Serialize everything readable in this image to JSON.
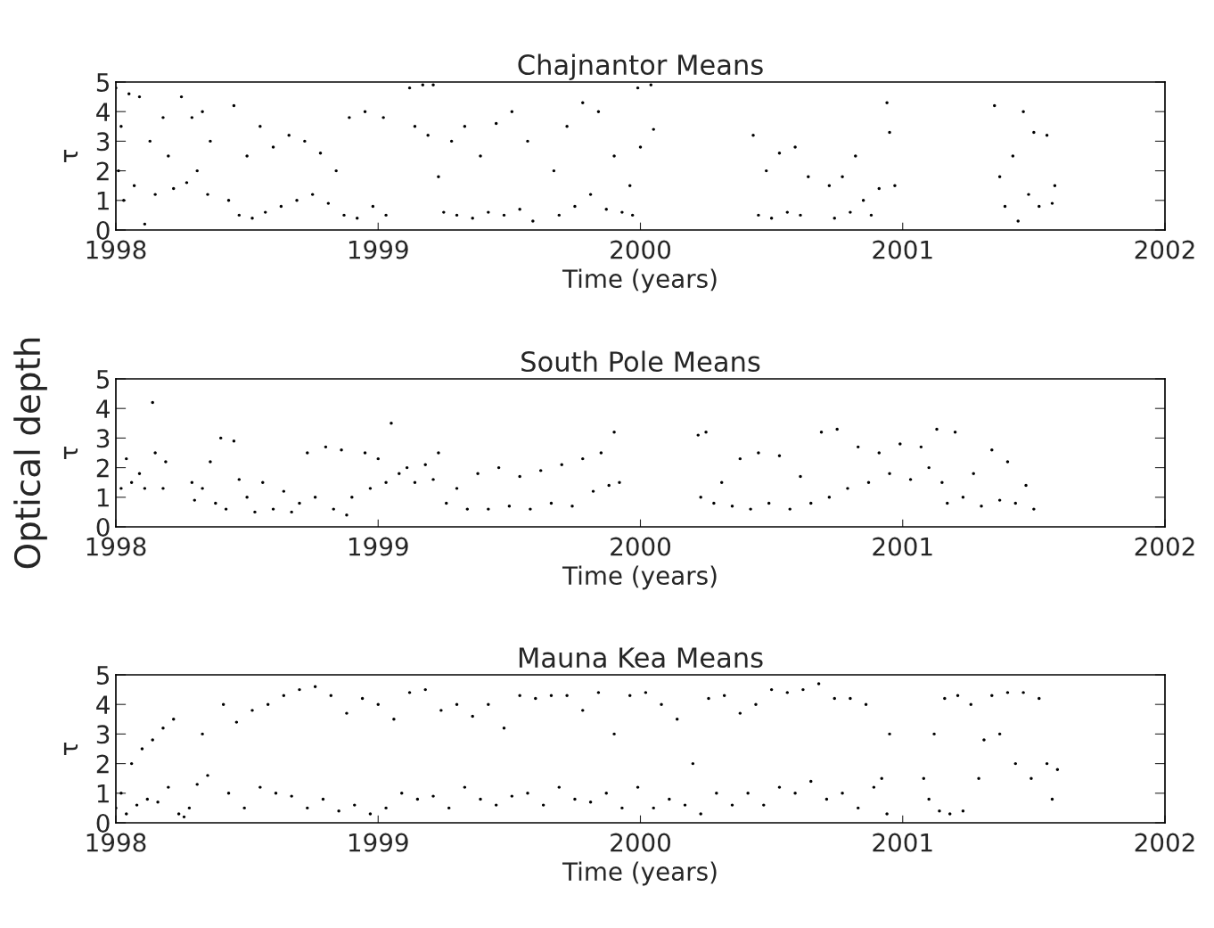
{
  "chart_data": [
    {
      "type": "scatter",
      "title": "Chajnantor Means",
      "xlabel": "Time (years)",
      "ylabel": "τ",
      "marker": "circle",
      "xlim": [
        1998,
        2002
      ],
      "xticks": [
        1998,
        1999,
        2000,
        2001,
        2002
      ],
      "ylim": [
        0,
        5
      ],
      "yticks": [
        0,
        1,
        2,
        3,
        4,
        5
      ],
      "series": [
        {
          "color": "#000000",
          "x": [
            1998.0,
            1998.01,
            1998.02,
            1998.03,
            1998.05,
            1998.07,
            1998.09,
            1998.11,
            1998.13,
            1998.15,
            1998.18,
            1998.2,
            1998.22,
            1998.25,
            1998.27,
            1998.29,
            1998.31,
            1998.33,
            1998.35,
            1998.36,
            1998.43,
            1998.45,
            1998.47,
            1998.5,
            1998.52,
            1998.55,
            1998.57,
            1998.6,
            1998.63,
            1998.66,
            1998.69,
            1998.72,
            1998.75,
            1998.78,
            1998.81,
            1998.84,
            1998.87,
            1998.89,
            1998.92,
            1998.95,
            1998.98,
            1999.02,
            1999.03,
            1999.12,
            1999.14,
            1999.17,
            1999.19,
            1999.21,
            1999.23,
            1999.25,
            1999.28,
            1999.3,
            1999.33,
            1999.36,
            1999.39,
            1999.42,
            1999.45,
            1999.48,
            1999.51,
            1999.54,
            1999.57,
            1999.59,
            1999.67,
            1999.69,
            1999.72,
            1999.75,
            1999.78,
            1999.81,
            1999.84,
            1999.87,
            1999.9,
            1999.93,
            1999.96,
            1999.97,
            1999.99,
            2000.0,
            2000.04,
            2000.05,
            2000.43,
            2000.45,
            2000.48,
            2000.5,
            2000.53,
            2000.56,
            2000.59,
            2000.61,
            2000.64,
            2000.72,
            2000.74,
            2000.77,
            2000.8,
            2000.82,
            2000.85,
            2000.88,
            2000.91,
            2000.94,
            2000.95,
            2000.97,
            2001.35,
            2001.37,
            2001.39,
            2001.42,
            2001.44,
            2001.46,
            2001.48,
            2001.5,
            2001.52,
            2001.55,
            2001.57,
            2001.58
          ],
          "values": [
            4.8,
            2.0,
            3.5,
            1.0,
            4.6,
            1.5,
            4.5,
            0.2,
            3.0,
            1.2,
            3.8,
            2.5,
            1.4,
            4.5,
            1.6,
            3.8,
            2.0,
            4.0,
            1.2,
            3.0,
            1.0,
            4.2,
            0.5,
            2.5,
            0.4,
            3.5,
            0.6,
            2.8,
            0.8,
            3.2,
            1.0,
            3.0,
            1.2,
            2.6,
            0.9,
            2.0,
            0.5,
            3.8,
            0.4,
            4.0,
            0.8,
            3.8,
            0.5,
            4.8,
            3.5,
            4.9,
            3.2,
            4.9,
            1.8,
            0.6,
            3.0,
            0.5,
            3.5,
            0.4,
            2.5,
            0.6,
            3.6,
            0.5,
            4.0,
            0.7,
            3.0,
            0.3,
            2.0,
            0.5,
            3.5,
            0.8,
            4.3,
            1.2,
            4.0,
            0.7,
            2.5,
            0.6,
            1.5,
            0.5,
            4.8,
            2.8,
            4.9,
            3.4,
            3.2,
            0.5,
            2.0,
            0.4,
            2.6,
            0.6,
            2.8,
            0.5,
            1.8,
            1.5,
            0.4,
            1.8,
            0.6,
            2.5,
            1.0,
            0.5,
            1.4,
            4.3,
            3.3,
            1.5,
            4.2,
            1.8,
            0.8,
            2.5,
            0.3,
            4.0,
            1.2,
            3.3,
            0.8,
            3.2,
            0.9,
            1.5
          ]
        }
      ]
    },
    {
      "type": "scatter",
      "title": "South Pole Means",
      "xlabel": "Time (years)",
      "ylabel": "τ",
      "annotations": [
        "Optical depth"
      ],
      "marker": "circle",
      "xlim": [
        1998,
        2002
      ],
      "xticks": [
        1998,
        1999,
        2000,
        2001,
        2002
      ],
      "ylim": [
        0,
        5
      ],
      "yticks": [
        0,
        1,
        2,
        3,
        4,
        5
      ],
      "series": [
        {
          "color": "#000000",
          "x": [
            1998.02,
            1998.04,
            1998.06,
            1998.09,
            1998.11,
            1998.14,
            1998.15,
            1998.18,
            1998.19,
            1998.29,
            1998.3,
            1998.33,
            1998.36,
            1998.38,
            1998.4,
            1998.42,
            1998.45,
            1998.47,
            1998.5,
            1998.53,
            1998.56,
            1998.6,
            1998.64,
            1998.67,
            1998.7,
            1998.73,
            1998.76,
            1998.8,
            1998.83,
            1998.86,
            1998.88,
            1998.9,
            1998.95,
            1998.97,
            1999.0,
            1999.03,
            1999.05,
            1999.08,
            1999.11,
            1999.14,
            1999.18,
            1999.21,
            1999.23,
            1999.26,
            1999.3,
            1999.34,
            1999.38,
            1999.42,
            1999.46,
            1999.5,
            1999.54,
            1999.58,
            1999.62,
            1999.66,
            1999.7,
            1999.74,
            1999.78,
            1999.82,
            1999.85,
            1999.88,
            1999.9,
            1999.92,
            2000.22,
            2000.23,
            2000.25,
            2000.28,
            2000.31,
            2000.35,
            2000.38,
            2000.42,
            2000.45,
            2000.49,
            2000.53,
            2000.57,
            2000.61,
            2000.65,
            2000.69,
            2000.72,
            2000.75,
            2000.79,
            2000.83,
            2000.87,
            2000.91,
            2000.95,
            2000.99,
            2001.03,
            2001.07,
            2001.1,
            2001.13,
            2001.15,
            2001.17,
            2001.2,
            2001.23,
            2001.27,
            2001.3,
            2001.34,
            2001.37,
            2001.4,
            2001.43,
            2001.47,
            2001.5
          ],
          "values": [
            1.3,
            2.3,
            1.5,
            1.8,
            1.3,
            4.2,
            2.5,
            1.3,
            2.2,
            1.5,
            0.9,
            1.3,
            2.2,
            0.8,
            3.0,
            0.6,
            2.9,
            1.6,
            1.0,
            0.5,
            1.5,
            0.6,
            1.2,
            0.5,
            0.8,
            2.5,
            1.0,
            2.7,
            0.6,
            2.6,
            0.4,
            1.0,
            2.5,
            1.3,
            2.3,
            1.5,
            3.5,
            1.8,
            2.0,
            1.5,
            2.1,
            1.6,
            2.5,
            0.8,
            1.3,
            0.6,
            1.8,
            0.6,
            2.0,
            0.7,
            1.7,
            0.6,
            1.9,
            0.8,
            2.1,
            0.7,
            2.3,
            1.2,
            2.5,
            1.4,
            3.2,
            1.5,
            3.1,
            1.0,
            3.2,
            0.8,
            1.5,
            0.7,
            2.3,
            0.6,
            2.5,
            0.8,
            2.4,
            0.6,
            1.7,
            0.8,
            3.2,
            1.0,
            3.3,
            1.3,
            2.7,
            1.5,
            2.5,
            1.8,
            2.8,
            1.6,
            2.7,
            2.0,
            3.3,
            1.5,
            0.8,
            3.2,
            1.0,
            1.8,
            0.7,
            2.6,
            0.9,
            2.2,
            0.8,
            1.4,
            0.6
          ]
        }
      ]
    },
    {
      "type": "scatter",
      "title": "Mauna Kea Means",
      "xlabel": "Time (years)",
      "ylabel": "τ",
      "marker": "circle",
      "xlim": [
        1998,
        2002
      ],
      "xticks": [
        1998,
        1999,
        2000,
        2001,
        2002
      ],
      "ylim": [
        0,
        5
      ],
      "yticks": [
        0,
        1,
        2,
        3,
        4,
        5
      ],
      "series": [
        {
          "color": "#000000",
          "x": [
            1998.0,
            1998.02,
            1998.04,
            1998.06,
            1998.08,
            1998.1,
            1998.12,
            1998.14,
            1998.16,
            1998.18,
            1998.2,
            1998.22,
            1998.24,
            1998.26,
            1998.28,
            1998.31,
            1998.33,
            1998.35,
            1998.41,
            1998.43,
            1998.46,
            1998.49,
            1998.52,
            1998.55,
            1998.58,
            1998.61,
            1998.64,
            1998.67,
            1998.7,
            1998.73,
            1998.76,
            1998.79,
            1998.82,
            1998.85,
            1998.88,
            1998.91,
            1998.94,
            1998.97,
            1999.0,
            1999.03,
            1999.06,
            1999.09,
            1999.12,
            1999.15,
            1999.18,
            1999.21,
            1999.24,
            1999.27,
            1999.3,
            1999.33,
            1999.36,
            1999.39,
            1999.42,
            1999.45,
            1999.48,
            1999.51,
            1999.54,
            1999.57,
            1999.6,
            1999.63,
            1999.66,
            1999.69,
            1999.72,
            1999.75,
            1999.78,
            1999.81,
            1999.84,
            1999.87,
            1999.9,
            1999.93,
            1999.96,
            1999.99,
            2000.02,
            2000.05,
            2000.08,
            2000.11,
            2000.14,
            2000.17,
            2000.2,
            2000.23,
            2000.26,
            2000.29,
            2000.32,
            2000.35,
            2000.38,
            2000.41,
            2000.44,
            2000.47,
            2000.5,
            2000.53,
            2000.56,
            2000.59,
            2000.62,
            2000.65,
            2000.68,
            2000.71,
            2000.74,
            2000.77,
            2000.8,
            2000.83,
            2000.86,
            2000.89,
            2000.92,
            2000.94,
            2000.95,
            2001.08,
            2001.1,
            2001.12,
            2001.14,
            2001.16,
            2001.18,
            2001.21,
            2001.23,
            2001.26,
            2001.29,
            2001.31,
            2001.34,
            2001.37,
            2001.4,
            2001.43,
            2001.46,
            2001.49,
            2001.52,
            2001.55,
            2001.57,
            2001.59
          ],
          "values": [
            0.5,
            1.0,
            0.3,
            2.0,
            0.6,
            2.5,
            0.8,
            2.8,
            0.7,
            3.2,
            1.2,
            3.5,
            0.3,
            0.2,
            0.5,
            1.3,
            3.0,
            1.6,
            4.0,
            1.0,
            3.4,
            0.5,
            3.8,
            1.2,
            4.0,
            1.0,
            4.3,
            0.9,
            4.5,
            0.5,
            4.6,
            0.8,
            4.3,
            0.4,
            3.7,
            0.6,
            4.2,
            0.3,
            4.0,
            0.5,
            3.5,
            1.0,
            4.4,
            0.8,
            4.5,
            0.9,
            3.8,
            0.5,
            4.0,
            1.2,
            3.6,
            0.8,
            4.0,
            0.6,
            3.2,
            0.9,
            4.3,
            1.0,
            4.2,
            0.6,
            4.3,
            1.2,
            4.3,
            0.8,
            3.8,
            0.7,
            4.4,
            1.0,
            3.0,
            0.5,
            4.3,
            1.2,
            4.4,
            0.5,
            4.0,
            0.8,
            3.5,
            0.6,
            2.0,
            0.3,
            4.2,
            1.0,
            4.3,
            0.6,
            3.7,
            1.0,
            4.0,
            0.6,
            4.5,
            1.2,
            4.4,
            1.0,
            4.5,
            1.4,
            4.7,
            0.8,
            4.2,
            1.0,
            4.2,
            0.5,
            4.0,
            1.2,
            1.5,
            0.3,
            3.0,
            1.5,
            0.8,
            3.0,
            0.4,
            4.2,
            0.3,
            4.3,
            0.4,
            4.0,
            1.5,
            2.8,
            4.3,
            3.0,
            4.4,
            2.0,
            4.4,
            1.5,
            4.2,
            2.0,
            0.8,
            1.8
          ]
        }
      ]
    }
  ]
}
